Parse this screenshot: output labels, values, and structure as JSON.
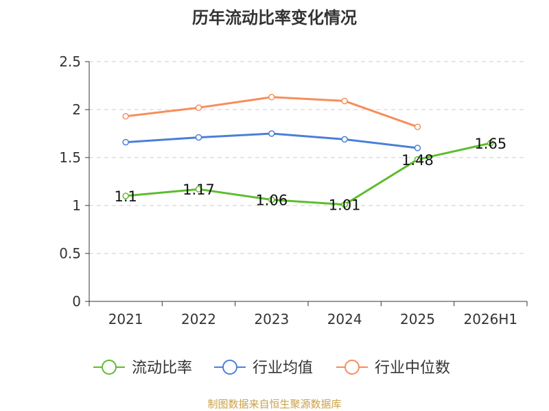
{
  "chart_data": {
    "type": "line",
    "title": "历年流动比率变化情况",
    "categories": [
      "2021",
      "2022",
      "2023",
      "2024",
      "2025",
      "2026H1"
    ],
    "ylim": [
      0,
      2.5
    ],
    "yticks": [
      "0",
      "0.5",
      "1",
      "1.5",
      "2",
      "2.5"
    ],
    "grid": true,
    "legend_position": "bottom",
    "series": [
      {
        "name": "流动比率",
        "color": "#5cbd2c",
        "values": [
          1.1,
          1.17,
          1.06,
          1.01,
          1.48,
          1.65
        ],
        "labels": [
          "1.1",
          "1.17",
          "1.06",
          "1.01",
          "1.48",
          "1.65"
        ]
      },
      {
        "name": "行业均值",
        "color": "#4a7fd8",
        "values": [
          1.66,
          1.71,
          1.75,
          1.69,
          1.6,
          null
        ]
      },
      {
        "name": "行业中位数",
        "color": "#f78d5a",
        "values": [
          1.93,
          2.02,
          2.13,
          2.09,
          1.82,
          null
        ]
      }
    ],
    "source": "制图数据来自恒生聚源数据库"
  }
}
